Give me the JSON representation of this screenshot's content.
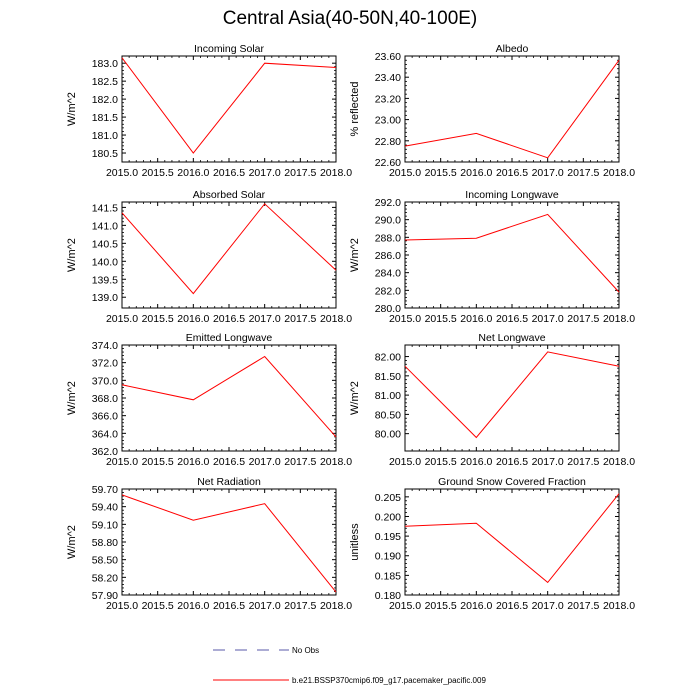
{
  "page": {
    "title": "Central Asia(40-50N,40-100E)"
  },
  "legend": {
    "items": [
      {
        "label": "No Obs",
        "color": "#5a5aa8",
        "style": "dashed"
      },
      {
        "label": "b.e21.BSSP370cmip6.f09_g17.pacemaker_pacific.009",
        "color": "#ff0000",
        "style": "solid"
      }
    ]
  },
  "chart_data": [
    {
      "type": "line",
      "title": "Incoming Solar",
      "ylabel": "W/m^2",
      "x": [
        2015.0,
        2016.0,
        2017.0,
        2018.0
      ],
      "xlim": [
        2015.0,
        2018.0
      ],
      "xticks": [
        2015.0,
        2015.5,
        2016.0,
        2016.5,
        2017.0,
        2017.5,
        2018.0
      ],
      "xtick_labels": [
        "2015.0",
        "2015.5",
        "2016.0",
        "2016.5",
        "2017.0",
        "2017.5",
        "2018.0"
      ],
      "ylim": [
        180.25,
        183.2
      ],
      "yticks": [
        180.5,
        181.0,
        181.5,
        182.0,
        182.5,
        183.0
      ],
      "ytick_labels": [
        "180.5",
        "181.0",
        "181.5",
        "182.0",
        "182.5",
        "183.0"
      ],
      "series": [
        {
          "color": "#ff0000",
          "values": [
            183.15,
            180.5,
            183.0,
            182.88
          ]
        }
      ]
    },
    {
      "type": "line",
      "title": "Albedo",
      "ylabel": "% reflected",
      "x": [
        2015.0,
        2016.0,
        2017.0,
        2018.0
      ],
      "xlim": [
        2015.0,
        2018.0
      ],
      "xticks": [
        2015.0,
        2015.5,
        2016.0,
        2016.5,
        2017.0,
        2017.5,
        2018.0
      ],
      "xtick_labels": [
        "2015.0",
        "2015.5",
        "2016.0",
        "2016.5",
        "2017.0",
        "2017.5",
        "2018.0"
      ],
      "ylim": [
        22.6,
        23.6
      ],
      "yticks": [
        22.6,
        22.8,
        23.0,
        23.2,
        23.4,
        23.6
      ],
      "ytick_labels": [
        "22.60",
        "22.80",
        "23.00",
        "23.20",
        "23.40",
        "23.60"
      ],
      "series": [
        {
          "color": "#ff0000",
          "values": [
            22.75,
            22.87,
            22.64,
            23.56
          ]
        }
      ]
    },
    {
      "type": "line",
      "title": "Absorbed Solar",
      "ylabel": "W/m^2",
      "x": [
        2015.0,
        2016.0,
        2017.0,
        2018.0
      ],
      "xlim": [
        2015.0,
        2018.0
      ],
      "xticks": [
        2015.0,
        2015.5,
        2016.0,
        2016.5,
        2017.0,
        2017.5,
        2018.0
      ],
      "xtick_labels": [
        "2015.0",
        "2015.5",
        "2016.0",
        "2016.5",
        "2017.0",
        "2017.5",
        "2018.0"
      ],
      "ylim": [
        138.7,
        141.65
      ],
      "yticks": [
        139.0,
        139.5,
        140.0,
        140.5,
        141.0,
        141.5
      ],
      "ytick_labels": [
        "139.0",
        "139.5",
        "140.0",
        "140.5",
        "141.0",
        "141.5"
      ],
      "series": [
        {
          "color": "#ff0000",
          "values": [
            141.35,
            139.1,
            141.6,
            139.75
          ]
        }
      ]
    },
    {
      "type": "line",
      "title": "Incoming Longwave",
      "ylabel": "W/m^2",
      "x": [
        2015.0,
        2016.0,
        2017.0,
        2018.0
      ],
      "xlim": [
        2015.0,
        2018.0
      ],
      "xticks": [
        2015.0,
        2015.5,
        2016.0,
        2016.5,
        2017.0,
        2017.5,
        2018.0
      ],
      "xtick_labels": [
        "2015.0",
        "2015.5",
        "2016.0",
        "2016.5",
        "2017.0",
        "2017.5",
        "2018.0"
      ],
      "ylim": [
        280.0,
        292.0
      ],
      "yticks": [
        280.0,
        282.0,
        284.0,
        286.0,
        288.0,
        290.0,
        292.0
      ],
      "ytick_labels": [
        "280.0",
        "282.0",
        "284.0",
        "286.0",
        "288.0",
        "290.0",
        "292.0"
      ],
      "series": [
        {
          "color": "#ff0000",
          "values": [
            287.7,
            287.9,
            290.6,
            281.8
          ]
        }
      ]
    },
    {
      "type": "line",
      "title": "Emitted Longwave",
      "ylabel": "W/m^2",
      "x": [
        2015.0,
        2016.0,
        2017.0,
        2018.0
      ],
      "xlim": [
        2015.0,
        2018.0
      ],
      "xticks": [
        2015.0,
        2015.5,
        2016.0,
        2016.5,
        2017.0,
        2017.5,
        2018.0
      ],
      "xtick_labels": [
        "2015.0",
        "2015.5",
        "2016.0",
        "2016.5",
        "2017.0",
        "2017.5",
        "2018.0"
      ],
      "ylim": [
        362.0,
        374.0
      ],
      "yticks": [
        362.0,
        364.0,
        366.0,
        368.0,
        370.0,
        372.0,
        374.0
      ],
      "ytick_labels": [
        "362.0",
        "364.0",
        "366.0",
        "368.0",
        "370.0",
        "372.0",
        "374.0"
      ],
      "series": [
        {
          "color": "#ff0000",
          "values": [
            369.5,
            367.8,
            372.7,
            363.6
          ]
        }
      ]
    },
    {
      "type": "line",
      "title": "Net Longwave",
      "ylabel": "W/m^2",
      "x": [
        2015.0,
        2016.0,
        2017.0,
        2018.0
      ],
      "xlim": [
        2015.0,
        2018.0
      ],
      "xticks": [
        2015.0,
        2015.5,
        2016.0,
        2016.5,
        2017.0,
        2017.5,
        2018.0
      ],
      "xtick_labels": [
        "2015.0",
        "2015.5",
        "2016.0",
        "2016.5",
        "2017.0",
        "2017.5",
        "2018.0"
      ],
      "ylim": [
        79.55,
        82.3
      ],
      "yticks": [
        80.0,
        80.5,
        81.0,
        81.5,
        82.0
      ],
      "ytick_labels": [
        "80.00",
        "80.50",
        "81.00",
        "81.50",
        "82.00"
      ],
      "series": [
        {
          "color": "#ff0000",
          "values": [
            81.75,
            79.9,
            82.12,
            81.75
          ]
        }
      ]
    },
    {
      "type": "line",
      "title": "Net Radiation",
      "ylabel": "W/m^2",
      "x": [
        2015.0,
        2016.0,
        2017.0,
        2018.0
      ],
      "xlim": [
        2015.0,
        2018.0
      ],
      "xticks": [
        2015.0,
        2015.5,
        2016.0,
        2016.5,
        2017.0,
        2017.5,
        2018.0
      ],
      "xtick_labels": [
        "2015.0",
        "2015.5",
        "2016.0",
        "2016.5",
        "2017.0",
        "2017.5",
        "2018.0"
      ],
      "ylim": [
        57.9,
        59.7
      ],
      "yticks": [
        57.9,
        58.2,
        58.5,
        58.8,
        59.1,
        59.4,
        59.7
      ],
      "ytick_labels": [
        "57.90",
        "58.20",
        "58.50",
        "58.80",
        "59.10",
        "59.40",
        "59.70"
      ],
      "series": [
        {
          "color": "#ff0000",
          "values": [
            59.6,
            59.17,
            59.45,
            57.95
          ]
        }
      ]
    },
    {
      "type": "line",
      "title": "Ground Snow Covered Fraction",
      "ylabel": "unitless",
      "x": [
        2015.0,
        2016.0,
        2017.0,
        2018.0
      ],
      "xlim": [
        2015.0,
        2018.0
      ],
      "xticks": [
        2015.0,
        2015.5,
        2016.0,
        2016.5,
        2017.0,
        2017.5,
        2018.0
      ],
      "xtick_labels": [
        "2015.0",
        "2015.5",
        "2016.0",
        "2016.5",
        "2017.0",
        "2017.5",
        "2018.0"
      ],
      "ylim": [
        0.18,
        0.207
      ],
      "yticks": [
        0.18,
        0.185,
        0.19,
        0.195,
        0.2,
        0.205
      ],
      "ytick_labels": [
        "0.180",
        "0.185",
        "0.190",
        "0.195",
        "0.200",
        "0.205"
      ],
      "series": [
        {
          "color": "#ff0000",
          "values": [
            0.1975,
            0.1983,
            0.1832,
            0.2058
          ]
        }
      ]
    }
  ]
}
